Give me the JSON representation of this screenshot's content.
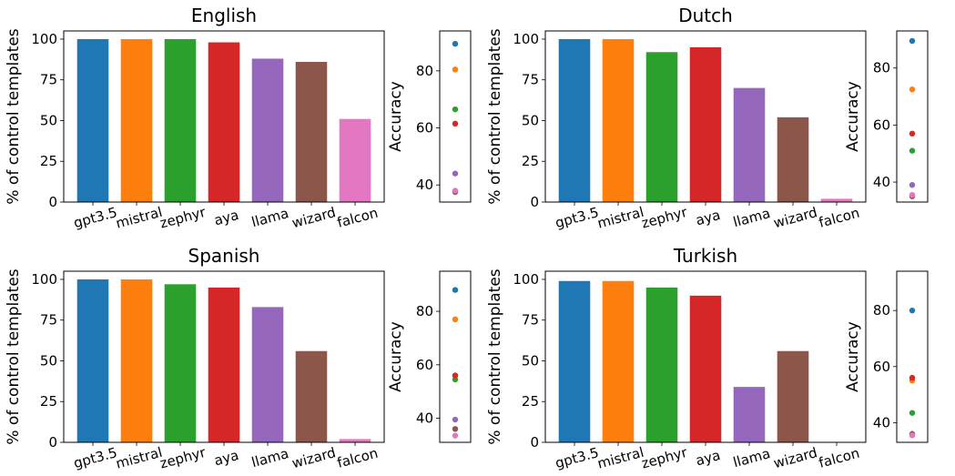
{
  "colors": {
    "gpt3.5": "#1f77b4",
    "mistral": "#ff7f0e",
    "zephyr": "#2ca02c",
    "aya": "#d62728",
    "llama": "#9467bd",
    "wizard": "#8c564b",
    "falcon": "#e377c2"
  },
  "chart_data": [
    {
      "type": "bar",
      "title": "English",
      "ylabel": "% of control templates",
      "categories": [
        "gpt3.5",
        "mistral",
        "zephyr",
        "aya",
        "llama",
        "wizard",
        "falcon"
      ],
      "values": [
        100,
        100,
        100,
        98,
        88,
        86,
        51
      ],
      "ylim": [
        0,
        105
      ],
      "yticks": [
        0,
        25,
        50,
        75,
        100
      ],
      "accuracy": {
        "ylabel": "Accuracy",
        "yticks": [
          40,
          60,
          80
        ],
        "ylim": [
          34,
          94
        ],
        "values": [
          89.5,
          80.5,
          66.5,
          61.5,
          44,
          37.5,
          38
        ]
      }
    },
    {
      "type": "bar",
      "title": "Dutch",
      "ylabel": "% of control templates",
      "categories": [
        "gpt3.5",
        "mistral",
        "zephyr",
        "aya",
        "llama",
        "wizard",
        "falcon"
      ],
      "values": [
        100,
        100,
        92,
        95,
        70,
        52,
        2
      ],
      "ylim": [
        0,
        105
      ],
      "yticks": [
        0,
        25,
        50,
        75,
        100
      ],
      "accuracy": {
        "ylabel": "Accuracy",
        "yticks": [
          40,
          60,
          80
        ],
        "ylim": [
          33,
          93
        ],
        "values": [
          89.5,
          72.5,
          51,
          57,
          39,
          35,
          35.5
        ]
      }
    },
    {
      "type": "bar",
      "title": "Spanish",
      "ylabel": "% of control templates",
      "categories": [
        "gpt3.5",
        "mistral",
        "zephyr",
        "aya",
        "llama",
        "wizard",
        "falcon"
      ],
      "values": [
        100,
        100,
        97,
        95,
        83,
        56,
        2
      ],
      "ylim": [
        0,
        105
      ],
      "yticks": [
        0,
        25,
        50,
        75,
        100
      ],
      "accuracy": {
        "ylabel": "Accuracy",
        "yticks": [
          40,
          60,
          80
        ],
        "ylim": [
          31,
          95
        ],
        "values": [
          88,
          77,
          54.5,
          56,
          39.5,
          36,
          33.5
        ]
      }
    },
    {
      "type": "bar",
      "title": "Turkish",
      "ylabel": "% of control templates",
      "categories": [
        "gpt3.5",
        "mistral",
        "zephyr",
        "aya",
        "llama",
        "wizard",
        "falcon"
      ],
      "values": [
        99,
        99,
        95,
        90,
        34,
        56,
        0
      ],
      "ylim": [
        0,
        105
      ],
      "yticks": [
        0,
        25,
        50,
        75,
        100
      ],
      "accuracy": {
        "ylabel": "Accuracy",
        "yticks": [
          40,
          60,
          80
        ],
        "ylim": [
          33,
          94
        ],
        "values": [
          80,
          55,
          43.5,
          56,
          35.5,
          36,
          35.5
        ]
      }
    }
  ]
}
